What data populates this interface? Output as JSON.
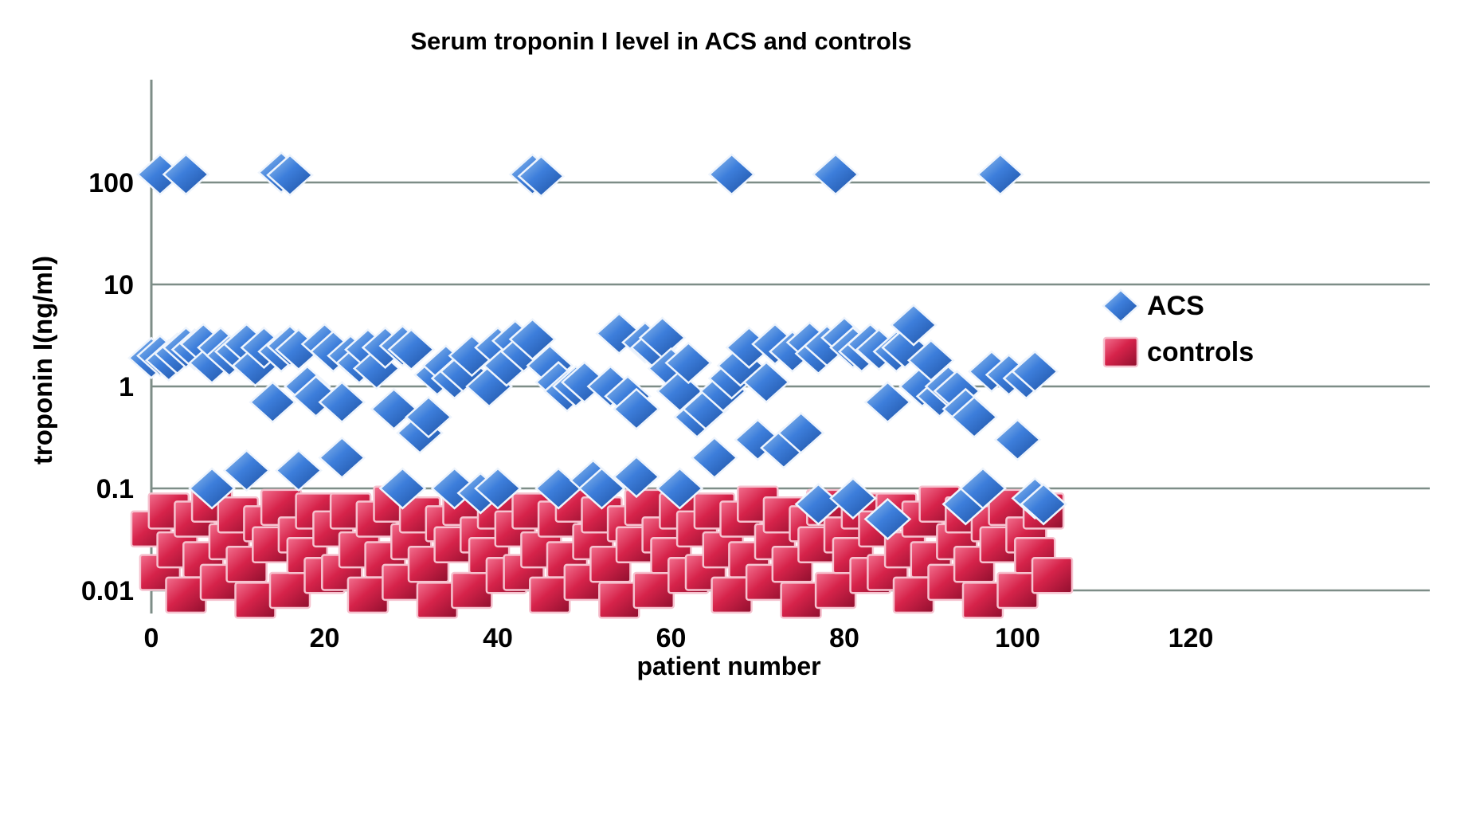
{
  "chart_data": {
    "type": "scatter",
    "title": "Serum troponin I level in ACS and controls",
    "xlabel": "patient number",
    "ylabel": "troponin I(ng/ml)",
    "yscale": "log",
    "grid": "horizontal",
    "legend_position": "right",
    "x_ticks": [
      0,
      20,
      40,
      60,
      80,
      100,
      120
    ],
    "y_ticks": [
      0.01,
      0.1,
      1,
      10,
      100
    ],
    "y_tick_labels": [
      "0.01",
      "0.1",
      "1",
      "10",
      "100"
    ],
    "xlim": [
      0,
      148
    ],
    "ylim": [
      0.006,
      1000
    ],
    "series": [
      {
        "name": "ACS",
        "marker": "diamond",
        "color": "#3d7edb",
        "color_light": "#9cc6f0",
        "color_dark": "#1c4fa0",
        "points": [
          [
            0,
            1.9
          ],
          [
            1,
            2.0
          ],
          [
            1,
            120
          ],
          [
            2,
            1.8
          ],
          [
            3,
            2.1
          ],
          [
            4,
            120
          ],
          [
            4,
            2.4
          ],
          [
            5,
            2.3
          ],
          [
            6,
            2.6
          ],
          [
            7,
            1.7
          ],
          [
            7,
            0.1
          ],
          [
            8,
            2.4
          ],
          [
            9,
            2.0
          ],
          [
            10,
            2.2
          ],
          [
            11,
            2.6
          ],
          [
            11,
            0.15
          ],
          [
            12,
            1.6
          ],
          [
            13,
            2.4
          ],
          [
            14,
            0.7
          ],
          [
            15,
            125
          ],
          [
            15,
            2.2
          ],
          [
            16,
            118
          ],
          [
            16,
            2.5
          ],
          [
            17,
            2.3
          ],
          [
            17,
            0.15
          ],
          [
            18,
            1.0
          ],
          [
            19,
            0.8
          ],
          [
            20,
            2.6
          ],
          [
            21,
            2.2
          ],
          [
            22,
            0.7
          ],
          [
            22,
            0.2
          ],
          [
            23,
            2.0
          ],
          [
            24,
            1.7
          ],
          [
            25,
            2.3
          ],
          [
            26,
            1.5
          ],
          [
            27,
            2.4
          ],
          [
            28,
            0.6
          ],
          [
            29,
            2.5
          ],
          [
            29,
            0.1
          ],
          [
            30,
            2.3
          ],
          [
            31,
            0.35
          ],
          [
            32,
            0.5
          ],
          [
            33,
            1.3
          ],
          [
            34,
            1.6
          ],
          [
            35,
            1.2
          ],
          [
            35,
            0.1
          ],
          [
            36,
            1.4
          ],
          [
            37,
            2.0
          ],
          [
            38,
            0.09
          ],
          [
            39,
            1.0
          ],
          [
            40,
            2.4
          ],
          [
            40,
            0.1
          ],
          [
            41,
            1.6
          ],
          [
            42,
            2.8
          ],
          [
            43,
            2.2
          ],
          [
            44,
            120
          ],
          [
            44,
            2.9
          ],
          [
            45,
            115
          ],
          [
            46,
            1.6
          ],
          [
            47,
            1.1
          ],
          [
            47,
            0.1
          ],
          [
            48,
            0.9
          ],
          [
            49,
            1.0
          ],
          [
            50,
            1.1
          ],
          [
            51,
            0.12
          ],
          [
            52,
            0.1
          ],
          [
            53,
            1.0
          ],
          [
            54,
            3.3
          ],
          [
            55,
            0.8
          ],
          [
            56,
            0.6
          ],
          [
            56,
            0.13
          ],
          [
            57,
            2.7
          ],
          [
            58,
            2.4
          ],
          [
            59,
            3.0
          ],
          [
            60,
            1.5
          ],
          [
            61,
            0.9
          ],
          [
            61,
            0.1
          ],
          [
            62,
            1.7
          ],
          [
            63,
            0.5
          ],
          [
            64,
            0.6
          ],
          [
            65,
            0.2
          ],
          [
            66,
            0.9
          ],
          [
            67,
            120
          ],
          [
            67,
            1.2
          ],
          [
            68,
            1.6
          ],
          [
            69,
            2.4
          ],
          [
            70,
            0.3
          ],
          [
            71,
            1.1
          ],
          [
            72,
            2.6
          ],
          [
            73,
            0.25
          ],
          [
            74,
            2.2
          ],
          [
            75,
            0.35
          ],
          [
            76,
            2.7
          ],
          [
            77,
            2.1
          ],
          [
            77,
            0.07
          ],
          [
            78,
            2.5
          ],
          [
            79,
            120
          ],
          [
            80,
            3.0
          ],
          [
            81,
            2.4
          ],
          [
            81,
            0.08
          ],
          [
            82,
            2.2
          ],
          [
            83,
            2.6
          ],
          [
            84,
            2.3
          ],
          [
            85,
            0.7
          ],
          [
            85,
            0.05
          ],
          [
            86,
            2.2
          ],
          [
            87,
            2.4
          ],
          [
            88,
            4.0
          ],
          [
            89,
            1.0
          ],
          [
            90,
            1.8
          ],
          [
            91,
            0.8
          ],
          [
            92,
            1.0
          ],
          [
            93,
            0.9
          ],
          [
            94,
            0.6
          ],
          [
            94,
            0.07
          ],
          [
            95,
            0.5
          ],
          [
            96,
            0.1
          ],
          [
            97,
            1.4
          ],
          [
            98,
            120
          ],
          [
            99,
            1.3
          ],
          [
            100,
            0.3
          ],
          [
            101,
            1.2
          ],
          [
            102,
            1.4
          ],
          [
            102,
            0.08
          ],
          [
            103,
            0.07
          ]
        ]
      },
      {
        "name": "controls",
        "marker": "square",
        "color": "#d6234a",
        "color_light": "#f2708f",
        "color_dark": "#8f0f2e",
        "points": [
          [
            0,
            0.04
          ],
          [
            1,
            0.015
          ],
          [
            2,
            0.06
          ],
          [
            3,
            0.025
          ],
          [
            4,
            0.009
          ],
          [
            5,
            0.05
          ],
          [
            6,
            0.02
          ],
          [
            7,
            0.07
          ],
          [
            8,
            0.012
          ],
          [
            9,
            0.03
          ],
          [
            10,
            0.055
          ],
          [
            11,
            0.018
          ],
          [
            12,
            0.008
          ],
          [
            13,
            0.045
          ],
          [
            14,
            0.028
          ],
          [
            15,
            0.065
          ],
          [
            16,
            0.01
          ],
          [
            17,
            0.035
          ],
          [
            18,
            0.022
          ],
          [
            19,
            0.06
          ],
          [
            20,
            0.014
          ],
          [
            21,
            0.04
          ],
          [
            22,
            0.015
          ],
          [
            23,
            0.06
          ],
          [
            24,
            0.025
          ],
          [
            25,
            0.009
          ],
          [
            26,
            0.05
          ],
          [
            27,
            0.02
          ],
          [
            28,
            0.07
          ],
          [
            29,
            0.012
          ],
          [
            30,
            0.03
          ],
          [
            31,
            0.055
          ],
          [
            32,
            0.018
          ],
          [
            33,
            0.008
          ],
          [
            34,
            0.045
          ],
          [
            35,
            0.028
          ],
          [
            36,
            0.065
          ],
          [
            37,
            0.01
          ],
          [
            38,
            0.035
          ],
          [
            39,
            0.022
          ],
          [
            40,
            0.06
          ],
          [
            41,
            0.014
          ],
          [
            42,
            0.04
          ],
          [
            43,
            0.015
          ],
          [
            44,
            0.06
          ],
          [
            45,
            0.025
          ],
          [
            46,
            0.009
          ],
          [
            47,
            0.05
          ],
          [
            48,
            0.02
          ],
          [
            49,
            0.07
          ],
          [
            50,
            0.012
          ],
          [
            51,
            0.03
          ],
          [
            52,
            0.055
          ],
          [
            53,
            0.018
          ],
          [
            54,
            0.008
          ],
          [
            55,
            0.045
          ],
          [
            56,
            0.028
          ],
          [
            57,
            0.065
          ],
          [
            58,
            0.01
          ],
          [
            59,
            0.035
          ],
          [
            60,
            0.022
          ],
          [
            61,
            0.06
          ],
          [
            62,
            0.014
          ],
          [
            63,
            0.04
          ],
          [
            64,
            0.015
          ],
          [
            65,
            0.06
          ],
          [
            66,
            0.025
          ],
          [
            67,
            0.009
          ],
          [
            68,
            0.05
          ],
          [
            69,
            0.02
          ],
          [
            70,
            0.07
          ],
          [
            71,
            0.012
          ],
          [
            72,
            0.03
          ],
          [
            73,
            0.055
          ],
          [
            74,
            0.018
          ],
          [
            75,
            0.008
          ],
          [
            76,
            0.045
          ],
          [
            77,
            0.028
          ],
          [
            78,
            0.065
          ],
          [
            79,
            0.01
          ],
          [
            80,
            0.035
          ],
          [
            81,
            0.022
          ],
          [
            82,
            0.06
          ],
          [
            83,
            0.014
          ],
          [
            84,
            0.04
          ],
          [
            85,
            0.015
          ],
          [
            86,
            0.06
          ],
          [
            87,
            0.025
          ],
          [
            88,
            0.009
          ],
          [
            89,
            0.05
          ],
          [
            90,
            0.02
          ],
          [
            91,
            0.07
          ],
          [
            92,
            0.012
          ],
          [
            93,
            0.03
          ],
          [
            94,
            0.055
          ],
          [
            95,
            0.018
          ],
          [
            96,
            0.008
          ],
          [
            97,
            0.045
          ],
          [
            98,
            0.028
          ],
          [
            99,
            0.065
          ],
          [
            100,
            0.01
          ],
          [
            101,
            0.035
          ],
          [
            102,
            0.022
          ],
          [
            103,
            0.06
          ],
          [
            104,
            0.014
          ]
        ]
      }
    ]
  },
  "colors": {
    "axis": "#7d8d87",
    "background": "#ffffff",
    "text": "#000000"
  }
}
